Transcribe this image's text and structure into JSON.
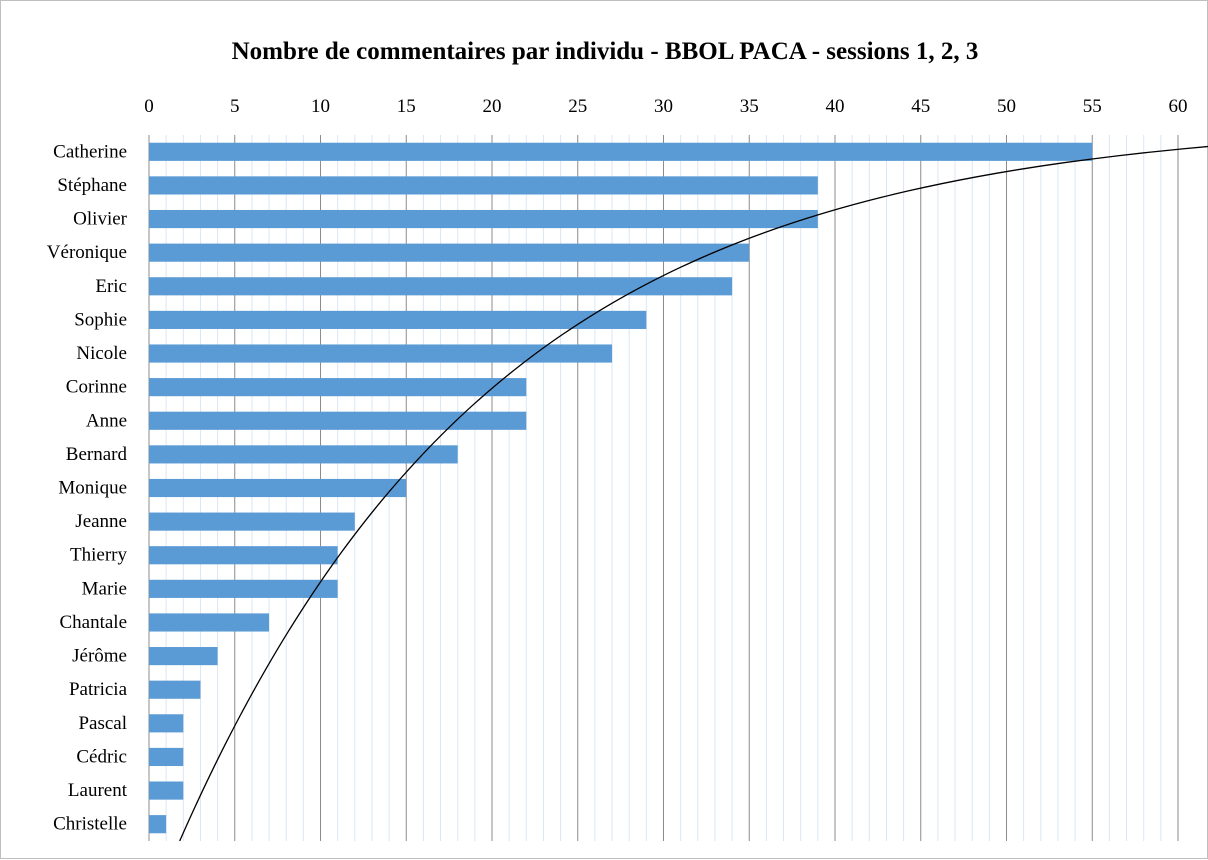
{
  "chart_data": {
    "type": "bar",
    "orientation": "horizontal",
    "title": "Nombre de commentaires par individu - BBOL PACA - sessions 1, 2, 3",
    "xlabel": "",
    "ylabel": "",
    "x_axis_position": "top",
    "xlim": [
      0,
      60
    ],
    "x_ticks": [
      0,
      5,
      10,
      15,
      20,
      25,
      30,
      35,
      40,
      45,
      50,
      55,
      60
    ],
    "x_tick_labels": [
      "0",
      "5",
      "10",
      "15",
      "20",
      "25",
      "30",
      "35",
      "40",
      "45",
      "50",
      "55",
      "60"
    ],
    "major_gridlines": true,
    "minor_gridlines": true,
    "legend": "none",
    "categories": [
      "Catherine",
      "Stéphane",
      "Olivier",
      "Véronique",
      "Eric",
      "Sophie",
      "Nicole",
      "Corinne",
      "Anne",
      "Bernard",
      "Monique",
      "Jeanne",
      "Thierry",
      "Marie",
      "Chantale",
      "Jérôme",
      "Patricia",
      "Pascal",
      "Cédric",
      "Laurent",
      "Christelle"
    ],
    "values": [
      55,
      39,
      39,
      35,
      34,
      29,
      27,
      22,
      22,
      18,
      15,
      12,
      11,
      11,
      7,
      4,
      3,
      2,
      2,
      2,
      1
    ],
    "bar_color": "#5b9bd5",
    "trendline": {
      "type": "logarithmic",
      "color": "#000000"
    }
  }
}
